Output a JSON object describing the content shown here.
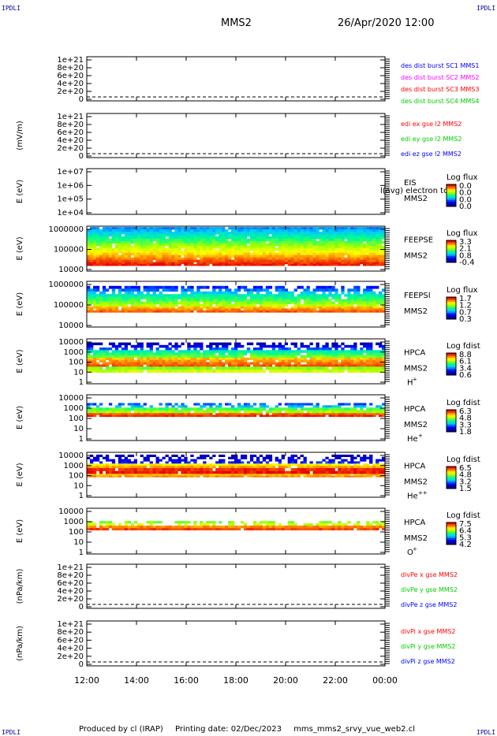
{
  "header": {
    "mission": "MMS2",
    "date": "26/Apr/2020 12:00"
  },
  "corners": {
    "tl": "IPDLI",
    "tr": "IPDLI",
    "bl": "IPDLI",
    "br": "IPDLI"
  },
  "footer": {
    "produced": "Produced by cl (IRAP)",
    "printed": "Printing date: 02/Dec/2023",
    "script": "mms_mms2_srvy_vue_web2.cl"
  },
  "colors": {
    "axis": "#000000",
    "dash": "#000000",
    "rainbow": [
      "#ffffff",
      "#00008b",
      "#0000ff",
      "#00bfff",
      "#00ff80",
      "#a0ff00",
      "#ffff00",
      "#ff8000",
      "#ff0000",
      "#b00000"
    ]
  },
  "time_axis": [
    "12:00",
    "14:00",
    "16:00",
    "18:00",
    "20:00",
    "22:00",
    "00:00"
  ],
  "chart_data": [
    {
      "type": "line",
      "panel": "fpi-des-dist",
      "yticks": [
        "1e+21",
        "8e+20",
        "6e+20",
        "4e+20",
        "2e+20",
        "0"
      ],
      "ylabel": "",
      "legend": [
        {
          "text": "des dist burst SC1 MMS1",
          "color": "#0000ff"
        },
        {
          "text": "des dist burst SC2 MMS2",
          "color": "#ff00ff"
        },
        {
          "text": "des dist burst SC3 MMS3",
          "color": "#ff0000"
        },
        {
          "text": "des dist burst SC4 MMS4",
          "color": "#00cc00"
        }
      ]
    },
    {
      "type": "line",
      "panel": "edi-e",
      "yticks": [
        "1e+21",
        "8e+20",
        "6e+20",
        "4e+20",
        "2e+20",
        "0"
      ],
      "ylabel": "(mV/m)",
      "legend": [
        {
          "text": "edi ex gse l2 MMS2",
          "color": "#ff0000"
        },
        {
          "text": "edi ey gse l2 MMS2",
          "color": "#00cc00"
        },
        {
          "text": "edi ez gse l2 MMS2",
          "color": "#0000ff"
        }
      ]
    },
    {
      "type": "heatmap",
      "panel": "eis",
      "yticks": [
        "1e+07",
        "1e+06",
        "1e+05",
        "1e+04"
      ],
      "ylabel": "E (eV)",
      "name": "EIS",
      "sc": "MMS2",
      "note": "l(avg) electron to",
      "cbar_title": "Log flux",
      "cbar_ticks": [
        "0.0",
        "0.0",
        "0.0",
        "0.0"
      ]
    },
    {
      "type": "heatmap",
      "panel": "feeps-e",
      "yticks": [
        "1000000",
        "100000",
        "10000"
      ],
      "ylabel": "E (eV)",
      "name": "FEEPSE",
      "sc": "MMS2",
      "cbar_title": "Log flux",
      "cbar_ticks": [
        "3.3",
        "2.1",
        "0.8",
        "-0.4"
      ]
    },
    {
      "type": "heatmap",
      "panel": "feeps-i",
      "yticks": [
        "1000000",
        "100000",
        "10000"
      ],
      "ylabel": "E (eV)",
      "name": "FEEPSI",
      "sc": "MMS2",
      "cbar_title": "Log flux",
      "cbar_ticks": [
        "1.7",
        "1.2",
        "0.7",
        "0.3"
      ]
    },
    {
      "type": "heatmap",
      "panel": "hpca-h",
      "yticks": [
        "10000",
        "1000",
        "100",
        "10",
        "1"
      ],
      "ylabel": "E (eV)",
      "name": "HPCA",
      "sc": "MMS2",
      "species": "H",
      "species_sup": "+",
      "cbar_title": "Log fdist",
      "cbar_ticks": [
        "8.8",
        "6.1",
        "3.4",
        "0.6"
      ]
    },
    {
      "type": "heatmap",
      "panel": "hpca-he",
      "yticks": [
        "10000",
        "1000",
        "100",
        "10",
        "1"
      ],
      "ylabel": "E (eV)",
      "name": "HPCA",
      "sc": "MMS2",
      "species": "He",
      "species_sup": "+",
      "cbar_title": "Log fdist",
      "cbar_ticks": [
        "6.3",
        "4.8",
        "3.3",
        "1.8"
      ]
    },
    {
      "type": "heatmap",
      "panel": "hpca-hepp",
      "yticks": [
        "10000",
        "1000",
        "100",
        "10",
        "1"
      ],
      "ylabel": "E (eV)",
      "name": "HPCA",
      "sc": "MMS2",
      "species": "He",
      "species_sup": "++",
      "cbar_title": "Log fdist",
      "cbar_ticks": [
        "6.5",
        "4.8",
        "3.2",
        "1.5"
      ]
    },
    {
      "type": "heatmap",
      "panel": "hpca-o",
      "yticks": [
        "10000",
        "1000",
        "100",
        "10",
        "1"
      ],
      "ylabel": "E (eV)",
      "name": "HPCA",
      "sc": "MMS2",
      "species": "O",
      "species_sup": "+",
      "cbar_title": "Log fdist",
      "cbar_ticks": [
        "7.5",
        "6.4",
        "5.3",
        "4.2"
      ]
    },
    {
      "type": "line",
      "panel": "divpe",
      "yticks": [
        "1e+21",
        "8e+20",
        "6e+20",
        "4e+20",
        "2e+20",
        "0"
      ],
      "ylabel": "(nPa/km)",
      "legend": [
        {
          "text": "divPe x gse MMS2",
          "color": "#ff0000"
        },
        {
          "text": "divPe y gse MMS2",
          "color": "#00cc00"
        },
        {
          "text": "divPe z gse MMS2",
          "color": "#0000ff"
        }
      ]
    },
    {
      "type": "line",
      "panel": "divpi",
      "yticks": [
        "1e+21",
        "8e+20",
        "6e+20",
        "4e+20",
        "2e+20",
        "0"
      ],
      "ylabel": "(nPa/km)",
      "legend": [
        {
          "text": "divPi x gse MMS2",
          "color": "#ff0000"
        },
        {
          "text": "divPi y gse MMS2",
          "color": "#00cc00"
        },
        {
          "text": "divPi z gse MMS2",
          "color": "#0000ff"
        }
      ]
    }
  ]
}
